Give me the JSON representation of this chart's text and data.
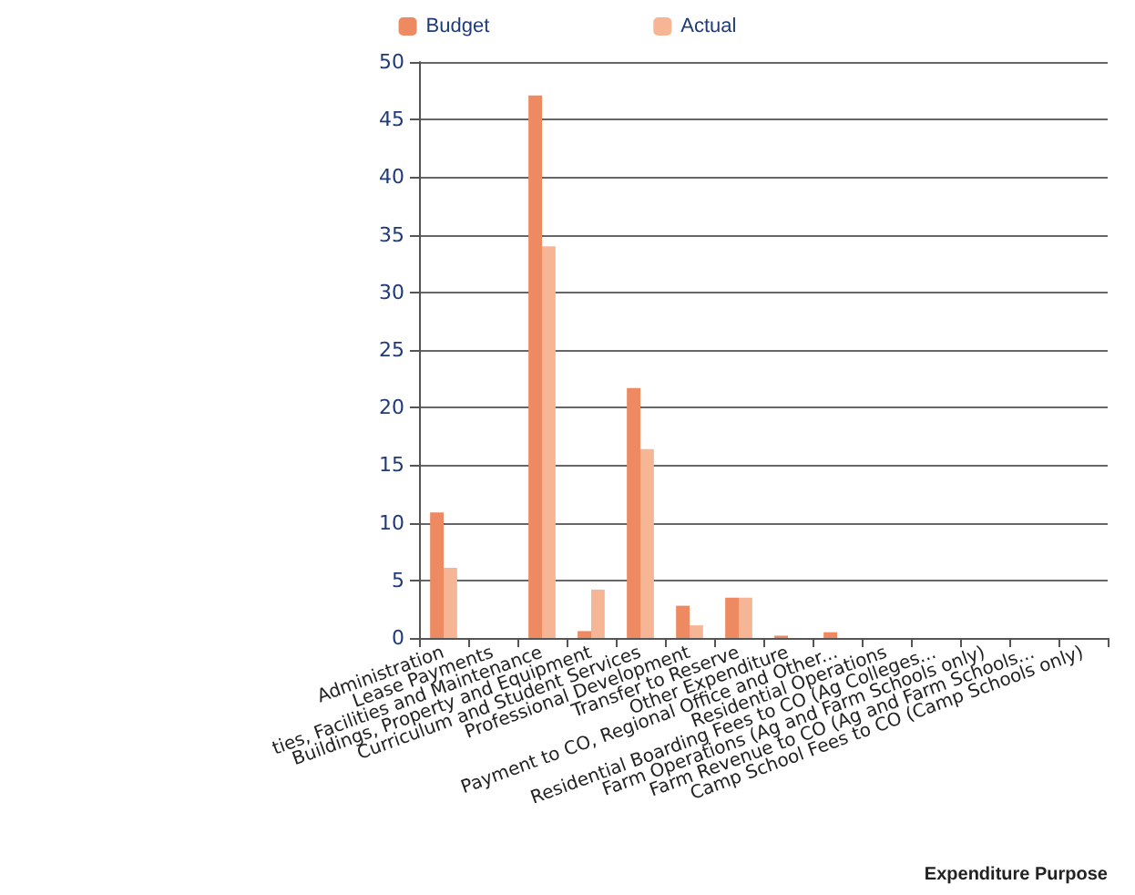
{
  "chart_data": {
    "type": "bar",
    "xlabel": "Expenditure Purpose",
    "categories": [
      "Administration",
      "Lease Payments",
      "ties, Facilities and Maintenance",
      "Buildings, Property and Equipment",
      "Curriculum and Student Services",
      "Professional Development",
      "Transfer to Reserve",
      "Other Expenditure",
      "Payment to CO, Regional Office and Other...",
      "Residential Operations",
      "Residential Boarding Fees to CO (Ag Colleges...",
      "Farm Operations (Ag and Farm Schools only)",
      "Farm Revenue to CO (Ag and Farm Schools...",
      "Camp School Fees to CO (Camp Schools only)"
    ],
    "series": [
      {
        "name": "Budget",
        "color": "#ee8a62",
        "values": [
          10.9,
          0,
          47.1,
          0.6,
          21.7,
          2.8,
          3.5,
          0.2,
          0.5,
          0,
          0,
          0,
          0,
          0
        ]
      },
      {
        "name": "Actual",
        "color": "#f6b696",
        "values": [
          6.1,
          0,
          34,
          4.2,
          16.4,
          1.1,
          3.5,
          0,
          0,
          0,
          0,
          0,
          0,
          0
        ]
      }
    ],
    "ylim": [
      0,
      50
    ],
    "yticks": [
      0,
      5,
      10,
      15,
      20,
      25,
      30,
      35,
      40,
      45,
      50
    ],
    "grid": "y",
    "legend": "top"
  }
}
